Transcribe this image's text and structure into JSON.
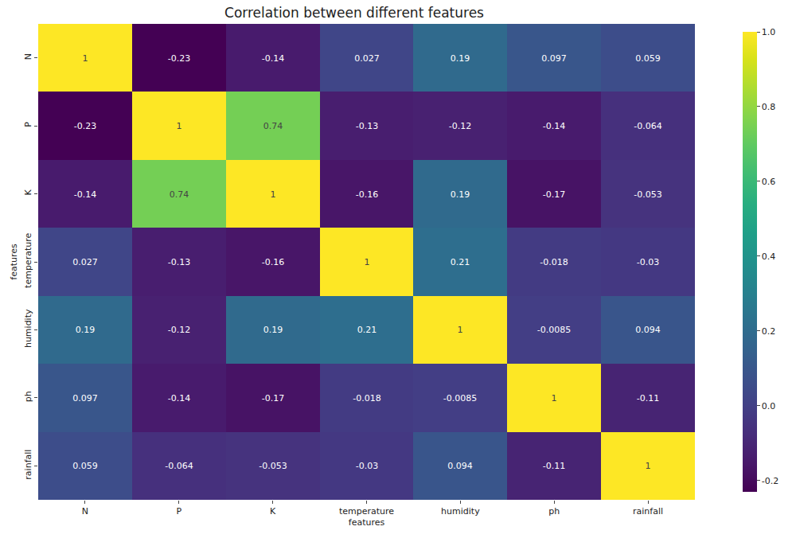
{
  "chart_data": {
    "type": "heatmap",
    "title": "Correlation between different features",
    "x_label": "features",
    "y_label": "features",
    "categories": [
      "N",
      "P",
      "K",
      "temperature",
      "humidity",
      "ph",
      "rainfall"
    ],
    "cells": [
      [
        1,
        -0.23,
        -0.14,
        0.027,
        0.19,
        0.097,
        0.059
      ],
      [
        -0.23,
        1,
        0.74,
        -0.13,
        -0.12,
        -0.14,
        -0.064
      ],
      [
        -0.14,
        0.74,
        1,
        -0.16,
        0.19,
        -0.17,
        -0.053
      ],
      [
        0.027,
        -0.13,
        -0.16,
        1,
        0.21,
        -0.018,
        -0.03
      ],
      [
        0.19,
        -0.12,
        0.19,
        0.21,
        1,
        -0.0085,
        0.094
      ],
      [
        0.097,
        -0.14,
        -0.17,
        -0.018,
        -0.0085,
        1,
        -0.11
      ],
      [
        0.059,
        -0.064,
        -0.053,
        -0.03,
        0.094,
        -0.11,
        1
      ]
    ],
    "data_labels": true,
    "colorbar_lim": [
      -0.23,
      1
    ],
    "colorbar_ticks": [
      -0.2,
      {
        "value": 0,
        "label": "0.0"
      },
      0.2,
      0.4,
      0.6,
      0.8,
      {
        "value": 1,
        "label": "1.0"
      }
    ]
  }
}
